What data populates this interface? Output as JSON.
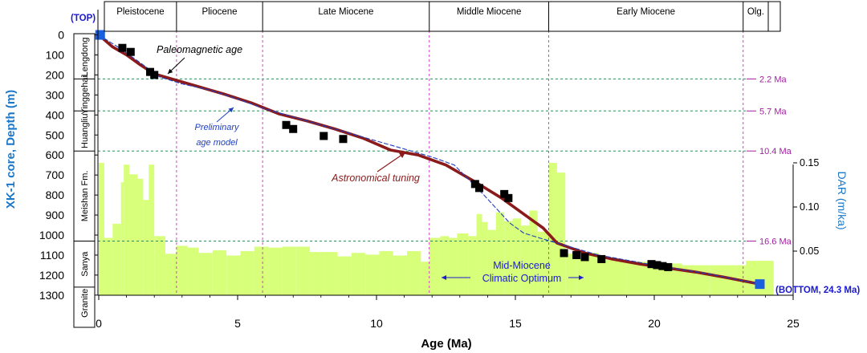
{
  "chart_data": {
    "type": "composite",
    "title": "",
    "xlabel": "Age (Ma)",
    "ylabel": "XK-1 core, Depth (m)",
    "y2label": "DAR (m/ka)",
    "xlim": [
      0,
      25
    ],
    "ylim": [
      0,
      1300
    ],
    "y2lim": [
      0,
      0.15
    ],
    "x_ticks": [
      0,
      5,
      10,
      15,
      20,
      25
    ],
    "y_ticks": [
      0,
      100,
      200,
      300,
      400,
      500,
      600,
      700,
      800,
      900,
      1000,
      1100,
      1200,
      1300
    ],
    "y2_ticks": [
      0.05,
      0.1,
      0.15
    ],
    "y2_tick_labels": [
      "0.05",
      "0.10",
      "0.15"
    ],
    "epochs": [
      {
        "name": "Pleistocene",
        "start": 0,
        "end": 2.8
      },
      {
        "name": "Pliocene",
        "start": 2.8,
        "end": 5.9
      },
      {
        "name": "Late Miocene",
        "start": 5.9,
        "end": 11.9
      },
      {
        "name": "Middle Miocene",
        "start": 11.9,
        "end": 16.2
      },
      {
        "name": "Early Miocene",
        "start": 16.2,
        "end": 23.2
      },
      {
        "name": "Olg.",
        "start": 23.2,
        "end": 24.3
      }
    ],
    "formations": [
      {
        "name": "Lengdong",
        "top": 0,
        "bottom": 220
      },
      {
        "name": "Yinggehai",
        "top": 220,
        "bottom": 380
      },
      {
        "name": "Huangliu",
        "top": 380,
        "bottom": 580
      },
      {
        "name": "Meishan Fm.",
        "top": 580,
        "bottom": 1030
      },
      {
        "name": "Sanya",
        "top": 1030,
        "bottom": 1260
      },
      {
        "name": "Granite",
        "top": 1260,
        "bottom": 1420
      }
    ],
    "boundaries": [
      {
        "depth": 220,
        "label": "2.2 Ma"
      },
      {
        "depth": 380,
        "label": "5.7 Ma"
      },
      {
        "depth": 580,
        "label": "10.4 Ma"
      },
      {
        "depth": 1030,
        "label": "16.6 Ma"
      }
    ],
    "series": [
      {
        "name": "Astronomical tuning",
        "type": "line",
        "color": "#8b1a1a",
        "x": [
          0,
          0.5,
          1.0,
          1.5,
          2.0,
          2.5,
          3.5,
          4.5,
          5.5,
          6.5,
          7.5,
          8.5,
          9.5,
          10.5,
          11.5,
          12.5,
          13.5,
          14.5,
          15.5,
          16.0,
          16.5,
          17.5,
          18.5,
          19.5,
          20.5,
          21.5,
          22.5,
          23.8
        ],
        "y": [
          0,
          60,
          100,
          150,
          195,
          215,
          255,
          295,
          340,
          395,
          430,
          470,
          515,
          575,
          600,
          650,
          730,
          815,
          915,
          965,
          1040,
          1090,
          1120,
          1145,
          1165,
          1185,
          1210,
          1245
        ]
      },
      {
        "name": "Preliminary age model",
        "type": "line",
        "dashed": true,
        "color": "#1f3fbf",
        "x": [
          0,
          0.8,
          1.6,
          2.2,
          3.0,
          4.0,
          5.0,
          6.0,
          7.0,
          8.0,
          9.0,
          10.0,
          11.0,
          12.0,
          12.8,
          13.8,
          14.8,
          15.3,
          16.0,
          17.0,
          18.0,
          20.0,
          22.0,
          23.8
        ],
        "y": [
          0,
          70,
          150,
          210,
          245,
          275,
          320,
          370,
          410,
          450,
          490,
          530,
          570,
          610,
          650,
          790,
          940,
          990,
          1020,
          1060,
          1100,
          1150,
          1195,
          1245
        ]
      },
      {
        "name": "Paleomagnetic age",
        "type": "scatter",
        "color": "#000000",
        "x": [
          0.85,
          1.15,
          1.85,
          2.0,
          6.75,
          7.0,
          8.1,
          8.8,
          13.55,
          13.7,
          14.6,
          14.75,
          16.75,
          17.2,
          17.5,
          18.1,
          19.9,
          20.1,
          20.3,
          20.5
        ],
        "y": [
          65,
          85,
          185,
          200,
          450,
          470,
          505,
          520,
          745,
          765,
          795,
          815,
          1090,
          1100,
          1110,
          1120,
          1145,
          1150,
          1155,
          1160
        ]
      },
      {
        "name": "Tie points",
        "type": "scatter",
        "color": "#1a5fe0",
        "x": [
          0.05,
          23.8
        ],
        "y": [
          0,
          1245
        ]
      },
      {
        "name": "DAR",
        "type": "area-step",
        "axis": "y2",
        "color": "#d7ff7a",
        "edges": [
          0,
          0.2,
          0.5,
          0.8,
          0.9,
          1.1,
          1.4,
          1.6,
          1.8,
          2.0,
          2.4,
          2.8,
          3.2,
          3.6,
          4.1,
          4.6,
          5.1,
          5.6,
          6.1,
          6.6,
          7.1,
          7.6,
          8.1,
          8.6,
          9.1,
          9.6,
          10.1,
          10.6,
          11.1,
          11.6,
          11.9,
          12.3,
          12.6,
          12.9,
          13.3,
          13.6,
          13.8,
          14.0,
          14.3,
          14.6,
          14.9,
          15.2,
          15.5,
          15.8,
          16.2,
          16.5,
          16.8,
          17.2,
          18.0,
          19.0,
          20.0,
          21.0,
          22.0,
          23.3,
          24.3
        ],
        "values": [
          0.15,
          0.065,
          0.081,
          0.128,
          0.148,
          0.137,
          0.132,
          0.108,
          0.148,
          0.067,
          0.047,
          0.056,
          0.054,
          0.048,
          0.051,
          0.045,
          0.05,
          0.055,
          0.054,
          0.055,
          0.055,
          0.049,
          0.049,
          0.044,
          0.048,
          0.046,
          0.05,
          0.045,
          0.05,
          0.038,
          0.065,
          0.067,
          0.065,
          0.07,
          0.067,
          0.092,
          0.083,
          0.074,
          0.094,
          0.084,
          0.087,
          0.079,
          0.096,
          0.072,
          0.15,
          0.139,
          0.047,
          0.048,
          0.04,
          0.038,
          0.036,
          0.034,
          0.034,
          0.039
        ]
      }
    ],
    "annotations": [
      {
        "text": "Paleomagnetic age",
        "x": 3.9,
        "y": 85
      },
      {
        "text": "Preliminary",
        "x": 4.1,
        "y": 460
      },
      {
        "text": "age model",
        "x": 4.1,
        "y": 525
      },
      {
        "text": "Astronomical tuning",
        "x": 11.7,
        "y": 695
      },
      {
        "text": "Mid-Miocene",
        "x": 15.4,
        "y": 1110
      },
      {
        "text": "Climatic Optimum",
        "x": 15.4,
        "y": 1170
      }
    ],
    "markers": {
      "top": "(TOP)",
      "bottom": "(BOTTOM, 24.3 Ma)"
    },
    "colors": {
      "tuning": "#8b1a1a",
      "preliminary": "#1f3fbf",
      "dar_fill": "#d7ff7a",
      "boundary": "#2e8b57",
      "epoch_line": "#d63fc7",
      "label_blue": "#1a1ad0",
      "axis_title_blue": "#1b78c8",
      "ma_label": "#a020a0"
    }
  }
}
